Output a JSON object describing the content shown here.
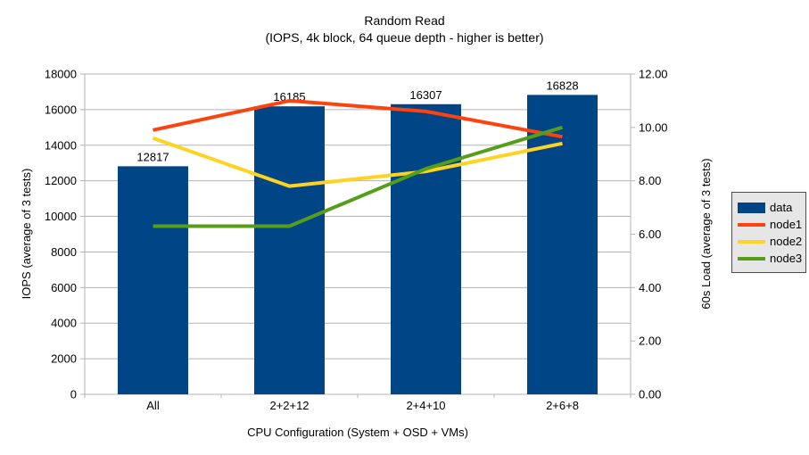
{
  "chart_data": {
    "type": "bar",
    "title": "Random Read",
    "subtitle": "(IOPS, 4k block, 64 queue depth - higher is better)",
    "categories": [
      "All",
      "2+2+12",
      "2+4+10",
      "2+6+8"
    ],
    "xlabel": "CPU Configuration (System + OSD + VMs)",
    "axes": {
      "left": {
        "title": "IOPS (average of 3 tests)",
        "min": 0,
        "max": 18000,
        "ticks": [
          "0",
          "2000",
          "4000",
          "6000",
          "8000",
          "10000",
          "12000",
          "14000",
          "16000",
          "18000"
        ]
      },
      "right": {
        "title": "60s Load (average of 3 tests)",
        "min": 0,
        "max": 12,
        "ticks": [
          "0.00",
          "2.00",
          "4.00",
          "6.00",
          "8.00",
          "10.00",
          "12.00"
        ]
      }
    },
    "bar_series": {
      "name": "data",
      "axis": "left",
      "color": "#004586",
      "values": [
        12817,
        16185,
        16307,
        16828
      ],
      "labels": [
        "12817",
        "16185",
        "16307",
        "16828"
      ]
    },
    "line_series": [
      {
        "name": "node1",
        "axis": "right",
        "color": "#ff420e",
        "values": [
          9.9,
          11.0,
          10.6,
          9.65
        ]
      },
      {
        "name": "node2",
        "axis": "right",
        "color": "#ffd320",
        "values": [
          9.6,
          7.8,
          8.35,
          9.4
        ]
      },
      {
        "name": "node3",
        "axis": "right",
        "color": "#579d1c",
        "values": [
          6.3,
          6.3,
          8.45,
          10.0
        ]
      }
    ],
    "legend": [
      {
        "label": "data",
        "swatch": "rect",
        "color": "#004586"
      },
      {
        "label": "node1",
        "swatch": "line",
        "color": "#ff420e"
      },
      {
        "label": "node2",
        "swatch": "line",
        "color": "#ffd320"
      },
      {
        "label": "node3",
        "swatch": "line",
        "color": "#579d1c"
      }
    ],
    "grid_color": "#b3b3b3",
    "legend_bg": "#e6e6e6",
    "text_color": "#000000"
  }
}
